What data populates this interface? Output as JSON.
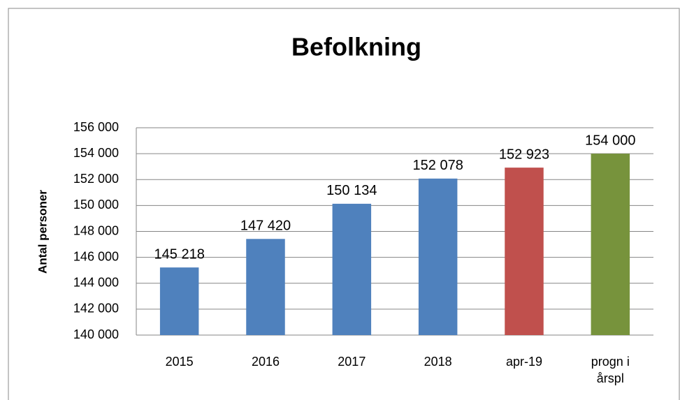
{
  "chart_data": {
    "type": "bar",
    "title": "Befolkning",
    "y_label": "Antal personer",
    "categories": [
      "2015",
      "2016",
      "2017",
      "2018",
      "apr-19",
      "progn i årspl"
    ],
    "values": [
      145218,
      147420,
      150134,
      152078,
      152923,
      154000
    ],
    "value_labels": [
      "145 218",
      "147 420",
      "150 134",
      "152 078",
      "152 923",
      "154 000"
    ],
    "colors": [
      "#4f81bd",
      "#4f81bd",
      "#4f81bd",
      "#4f81bd",
      "#c0504d",
      "#77933c"
    ],
    "ylim": [
      140000,
      156000
    ],
    "yticks": [
      {
        "value": 140000,
        "label": "140 000"
      },
      {
        "value": 142000,
        "label": "142 000"
      },
      {
        "value": 144000,
        "label": "144 000"
      },
      {
        "value": 146000,
        "label": "146 000"
      },
      {
        "value": 148000,
        "label": "148 000"
      },
      {
        "value": 150000,
        "label": "150 000"
      },
      {
        "value": 152000,
        "label": "152 000"
      },
      {
        "value": 154000,
        "label": "154 000"
      },
      {
        "value": 156000,
        "label": "156 000"
      }
    ],
    "grid": true
  }
}
